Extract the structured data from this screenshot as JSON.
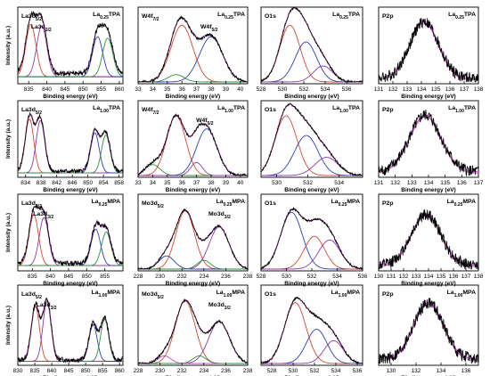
{
  "chart_data": [
    {
      "type": "line",
      "row": 0,
      "col": 0,
      "sample_label": "La0.25TPA",
      "peak_labels": [
        "La3d5/2",
        "La3d3/2"
      ],
      "xlabel": "Binding energy (eV)",
      "ylabel": "Intensity (a.u.)",
      "xlim": [
        832,
        861
      ],
      "xticks": [
        835,
        840,
        845,
        850,
        855,
        860
      ],
      "xlabels": [
        "835",
        "840",
        "845",
        "850",
        "855",
        "860"
      ],
      "components": [
        {
          "center": 835.6,
          "width": 1.4,
          "height": 0.72,
          "color": "#d4472e"
        },
        {
          "center": 838.6,
          "width": 1.4,
          "height": 0.7,
          "color": "#8e3aa6"
        },
        {
          "center": 854.0,
          "width": 1.4,
          "height": 0.55,
          "color": "#2a3fb8"
        },
        {
          "center": 856.8,
          "width": 1.4,
          "height": 0.53,
          "color": "#2d8f3a"
        }
      ],
      "baseline": 0.12,
      "noise": 0.035,
      "seed": 1
    },
    {
      "type": "line",
      "row": 0,
      "col": 1,
      "sample_label": "La0.25TPA",
      "peak_labels": [
        "W4f7/2",
        "W4f5/2"
      ],
      "xlabel": "Binding energy (eV)",
      "ylabel": "",
      "xlim": [
        33,
        40.5
      ],
      "xticks": [
        33,
        34,
        35,
        36,
        37,
        38,
        39,
        40
      ],
      "xlabels": [
        "33",
        "34",
        "35",
        "36",
        "37",
        "38",
        "39",
        "40"
      ],
      "components": [
        {
          "center": 36.0,
          "width": 0.75,
          "height": 0.78,
          "color": "#d4472e"
        },
        {
          "center": 38.0,
          "width": 0.8,
          "height": 0.62,
          "color": "#2a3fb8"
        },
        {
          "center": 35.6,
          "width": 0.55,
          "height": 0.1,
          "color": "#2d8f3a"
        }
      ],
      "baseline": 0.0,
      "noise": 0.02,
      "seed": 2
    },
    {
      "type": "line",
      "row": 0,
      "col": 2,
      "sample_label": "La0.25TPA",
      "peak_labels": [
        "O1s"
      ],
      "xlabel": "Binding energy (eV)",
      "ylabel": "",
      "xlim": [
        528,
        537.5
      ],
      "xticks": [
        528,
        530,
        532,
        534,
        536
      ],
      "xlabels": [
        "528",
        "530",
        "532",
        "534",
        "536"
      ],
      "components": [
        {
          "center": 530.7,
          "width": 0.95,
          "height": 0.78,
          "color": "#d4472e"
        },
        {
          "center": 532.2,
          "width": 1.0,
          "height": 0.55,
          "color": "#2a3fb8"
        },
        {
          "center": 533.8,
          "width": 0.9,
          "height": 0.22,
          "color": "#8e3aa6"
        }
      ],
      "baseline": 0.0,
      "noise": 0.015,
      "seed": 3
    },
    {
      "type": "line",
      "row": 0,
      "col": 3,
      "sample_label": "La0.25TPA",
      "peak_labels": [
        "P2p"
      ],
      "xlabel": "Binding energy (eV)",
      "ylabel": "",
      "xlim": [
        131,
        138
      ],
      "xticks": [
        131,
        132,
        133,
        134,
        135,
        136,
        137,
        138
      ],
      "xlabels": [
        "131",
        "132",
        "133",
        "134",
        "135",
        "136",
        "137",
        "138"
      ],
      "components": [
        {
          "center": 134.2,
          "width": 1.0,
          "height": 0.78,
          "color": "#c34dc2"
        }
      ],
      "baseline": 0.05,
      "noise": 0.08,
      "seed": 4
    },
    {
      "type": "line",
      "row": 1,
      "col": 0,
      "sample_label": "La1.00TPA",
      "peak_labels": [
        "La3d5/2"
      ],
      "xlabel": "Binding energy (eV)",
      "ylabel": "Intensity (a.u.)",
      "xlim": [
        832,
        859
      ],
      "xticks": [
        834,
        838,
        842,
        846,
        850,
        854,
        858
      ],
      "xlabels": [
        "834",
        "838",
        "842",
        "846",
        "850",
        "854",
        "858"
      ],
      "components": [
        {
          "center": 835.0,
          "width": 1.1,
          "height": 0.74,
          "color": "#d4472e"
        },
        {
          "center": 837.8,
          "width": 1.1,
          "height": 0.72,
          "color": "#8e3aa6"
        },
        {
          "center": 851.8,
          "width": 1.1,
          "height": 0.55,
          "color": "#2a3fb8"
        },
        {
          "center": 854.6,
          "width": 1.1,
          "height": 0.52,
          "color": "#2d8f3a"
        }
      ],
      "baseline": 0.06,
      "noise": 0.03,
      "seed": 5
    },
    {
      "type": "line",
      "row": 1,
      "col": 1,
      "sample_label": "La1.00TPA",
      "peak_labels": [
        "W4f7/2",
        "W4f5/2"
      ],
      "xlabel": "Binding energy (eV)",
      "ylabel": "",
      "xlim": [
        33,
        40.5
      ],
      "xticks": [
        33,
        34,
        35,
        36,
        37,
        38,
        39,
        40
      ],
      "xlabels": [
        "33",
        "34",
        "35",
        "36",
        "37",
        "38",
        "39",
        "40"
      ],
      "components": [
        {
          "center": 35.6,
          "width": 0.65,
          "height": 0.82,
          "color": "#d4472e"
        },
        {
          "center": 37.7,
          "width": 0.7,
          "height": 0.64,
          "color": "#2a3fb8"
        },
        {
          "center": 34.0,
          "width": 0.5,
          "height": 0.15,
          "color": "#2d8f3a"
        },
        {
          "center": 37.0,
          "width": 0.4,
          "height": 0.18,
          "color": "#8e3aa6"
        }
      ],
      "baseline": 0.0,
      "noise": 0.02,
      "seed": 6
    },
    {
      "type": "line",
      "row": 1,
      "col": 2,
      "sample_label": "La1.00TPA",
      "peak_labels": [
        "O1s"
      ],
      "xlabel": "Binding energy (eV)",
      "ylabel": "",
      "xlim": [
        529,
        535.5
      ],
      "xticks": [
        530,
        532,
        534
      ],
      "xlabels": [
        "530",
        "532",
        "534"
      ],
      "components": [
        {
          "center": 530.6,
          "width": 0.7,
          "height": 0.82,
          "color": "#d4472e"
        },
        {
          "center": 531.9,
          "width": 0.75,
          "height": 0.55,
          "color": "#2a3fb8"
        },
        {
          "center": 533.2,
          "width": 0.75,
          "height": 0.25,
          "color": "#8e3aa6"
        }
      ],
      "baseline": 0.0,
      "noise": 0.015,
      "seed": 7
    },
    {
      "type": "line",
      "row": 1,
      "col": 3,
      "sample_label": "La1.00TPA",
      "peak_labels": [
        "P2p"
      ],
      "xlabel": "Binding energy (eV)",
      "ylabel": "",
      "xlim": [
        131,
        137
      ],
      "xticks": [
        131,
        132,
        133,
        134,
        135,
        136,
        137
      ],
      "xlabels": [
        "131",
        "132",
        "133",
        "134",
        "135",
        "136",
        "137"
      ],
      "components": [
        {
          "center": 133.8,
          "width": 0.95,
          "height": 0.78,
          "color": "#c34dc2"
        }
      ],
      "baseline": 0.05,
      "noise": 0.08,
      "seed": 8
    },
    {
      "type": "line",
      "row": 2,
      "col": 0,
      "sample_label": "La0.25MPA",
      "peak_labels": [
        "La3d5/2",
        "La3d3/2"
      ],
      "xlabel": "Binding energy (eV)",
      "ylabel": "Intensity (a.u.)",
      "xlim": [
        831,
        860
      ],
      "xticks": [
        835,
        840,
        845,
        850,
        855
      ],
      "xlabels": [
        "835",
        "840",
        "845",
        "850",
        "855"
      ],
      "components": [
        {
          "center": 835.4,
          "width": 1.3,
          "height": 0.7,
          "color": "#d4472e"
        },
        {
          "center": 838.2,
          "width": 1.3,
          "height": 0.66,
          "color": "#8e3aa6"
        },
        {
          "center": 852.5,
          "width": 1.3,
          "height": 0.5,
          "color": "#2a3fb8"
        },
        {
          "center": 855.4,
          "width": 1.3,
          "height": 0.46,
          "color": "#2d8f3a"
        }
      ],
      "baseline": 0.08,
      "noise": 0.035,
      "seed": 9
    },
    {
      "type": "line",
      "row": 2,
      "col": 1,
      "sample_label": "La0.25MPA",
      "peak_labels": [
        "Mo3d5/2",
        "Mo3d3/2"
      ],
      "xlabel": "Binding energy (eV)",
      "ylabel": "",
      "xlim": [
        228,
        238
      ],
      "xticks": [
        228,
        230,
        232,
        234,
        236,
        238
      ],
      "xlabels": [
        "228",
        "230",
        "232",
        "234",
        "236",
        "238"
      ],
      "components": [
        {
          "center": 232.3,
          "width": 0.85,
          "height": 0.8,
          "color": "#d4472e"
        },
        {
          "center": 235.4,
          "width": 0.9,
          "height": 0.58,
          "color": "#8e3aa6"
        },
        {
          "center": 230.6,
          "width": 0.7,
          "height": 0.18,
          "color": "#2a3fb8"
        },
        {
          "center": 234.0,
          "width": 0.6,
          "height": 0.12,
          "color": "#2d8f3a"
        }
      ],
      "baseline": 0.0,
      "noise": 0.015,
      "seed": 10
    },
    {
      "type": "line",
      "row": 2,
      "col": 2,
      "sample_label": "La0.25MPA",
      "peak_labels": [
        "O1s"
      ],
      "xlabel": "Binding energy (eV)",
      "ylabel": "",
      "xlim": [
        528,
        536
      ],
      "xticks": [
        528,
        530,
        532,
        534,
        536
      ],
      "xlabels": [
        "528",
        "530",
        "532",
        "534",
        "536"
      ],
      "components": [
        {
          "center": 530.4,
          "width": 0.85,
          "height": 0.78,
          "color": "#2a3fb8"
        },
        {
          "center": 532.2,
          "width": 0.8,
          "height": 0.45,
          "color": "#d4472e"
        },
        {
          "center": 533.4,
          "width": 0.85,
          "height": 0.4,
          "color": "#8e3aa6"
        }
      ],
      "baseline": 0.0,
      "noise": 0.015,
      "seed": 11
    },
    {
      "type": "line",
      "row": 2,
      "col": 3,
      "sample_label": "La0.25MPA",
      "peak_labels": [
        "P2p"
      ],
      "xlabel": "Binding energy (eV)",
      "ylabel": "",
      "xlim": [
        130,
        138
      ],
      "xticks": [
        130,
        131,
        132,
        133,
        134,
        135,
        136,
        137,
        138
      ],
      "xlabels": [
        "130",
        "131",
        "132",
        "133",
        "134",
        "135",
        "136",
        "137",
        "138"
      ],
      "components": [
        {
          "center": 133.8,
          "width": 1.2,
          "height": 0.7,
          "color": "#c34dc2"
        }
      ],
      "baseline": 0.05,
      "noise": 0.08,
      "seed": 12
    },
    {
      "type": "line",
      "row": 3,
      "col": 0,
      "sample_label": "La1.00MPA",
      "peak_labels": [
        "La3d5/2",
        "La3d3/2"
      ],
      "xlabel": "Binding energy (eV)",
      "ylabel": "Intensity (a.u.)",
      "xlim": [
        830,
        861
      ],
      "xticks": [
        830,
        835,
        840,
        845,
        850,
        855,
        860
      ],
      "xlabels": [
        "830",
        "835",
        "840",
        "845",
        "850",
        "855",
        "860"
      ],
      "components": [
        {
          "center": 835.2,
          "width": 1.2,
          "height": 0.72,
          "color": "#d4472e"
        },
        {
          "center": 838.6,
          "width": 1.2,
          "height": 0.78,
          "color": "#8e3aa6"
        },
        {
          "center": 852.2,
          "width": 1.2,
          "height": 0.48,
          "color": "#2a3fb8"
        },
        {
          "center": 855.6,
          "width": 1.2,
          "height": 0.55,
          "color": "#2d8f3a"
        }
      ],
      "baseline": 0.05,
      "noise": 0.035,
      "seed": 13
    },
    {
      "type": "line",
      "row": 3,
      "col": 1,
      "sample_label": "La1.00MPA",
      "peak_labels": [
        "Mo3d5/2",
        "Mo3d3/2"
      ],
      "xlabel": "Binding energy (eV)",
      "ylabel": "",
      "xlim": [
        228,
        238
      ],
      "xticks": [
        228,
        230,
        232,
        234,
        236,
        238
      ],
      "xlabels": [
        "228",
        "230",
        "232",
        "234",
        "236",
        "238"
      ],
      "components": [
        {
          "center": 232.3,
          "width": 0.9,
          "height": 0.82,
          "color": "#d4472e"
        },
        {
          "center": 235.4,
          "width": 0.95,
          "height": 0.55,
          "color": "#8e3aa6"
        },
        {
          "center": 230.4,
          "width": 0.6,
          "height": 0.1,
          "color": "#c34dc2"
        },
        {
          "center": 233.6,
          "width": 0.6,
          "height": 0.1,
          "color": "#2d8f3a"
        }
      ],
      "baseline": 0.0,
      "noise": 0.015,
      "seed": 14
    },
    {
      "type": "line",
      "row": 3,
      "col": 2,
      "sample_label": "La1.00MPA",
      "peak_labels": [
        "O1s"
      ],
      "xlabel": "Binding energy (eV)",
      "ylabel": "",
      "xlim": [
        527,
        536.5
      ],
      "xticks": [
        528,
        530,
        532,
        534,
        536
      ],
      "xlabels": [
        "528",
        "530",
        "532",
        "534",
        "536"
      ],
      "components": [
        {
          "center": 530.2,
          "width": 1.0,
          "height": 0.8,
          "color": "#d4472e"
        },
        {
          "center": 532.2,
          "width": 0.95,
          "height": 0.45,
          "color": "#2a3fb8"
        },
        {
          "center": 533.8,
          "width": 0.9,
          "height": 0.3,
          "color": "#8e3aa6"
        }
      ],
      "baseline": 0.0,
      "noise": 0.015,
      "seed": 15
    },
    {
      "type": "line",
      "row": 3,
      "col": 3,
      "sample_label": "La1.00MPA",
      "peak_labels": [
        "P2p"
      ],
      "xlabel": "Binding energy (eV)",
      "ylabel": "",
      "xlim": [
        129,
        137
      ],
      "xticks": [
        130,
        132,
        134,
        136
      ],
      "xlabels": [
        "130",
        "132",
        "134",
        "136"
      ],
      "components": [
        {
          "center": 133.0,
          "width": 1.2,
          "height": 0.75,
          "color": "#c34dc2"
        }
      ],
      "baseline": 0.05,
      "noise": 0.08,
      "seed": 16
    }
  ]
}
